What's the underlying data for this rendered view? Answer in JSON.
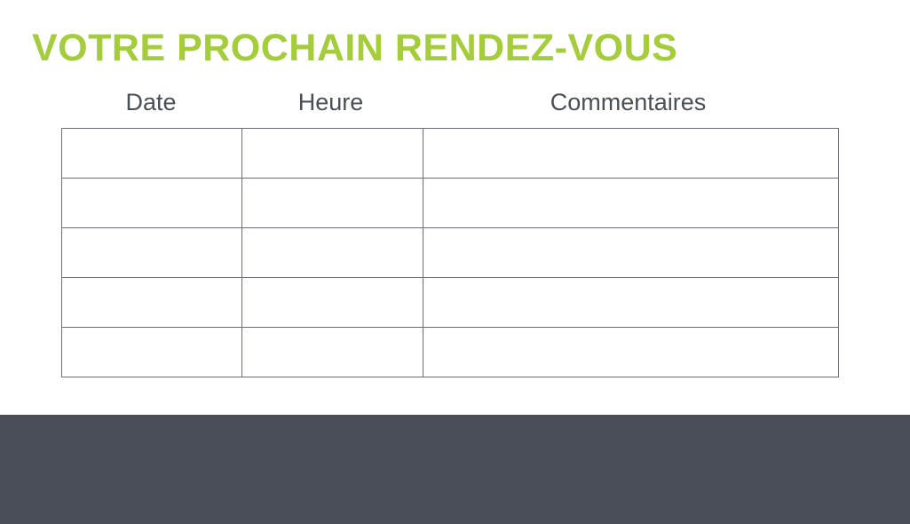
{
  "title": "VOTRE PROCHAIN RENDEZ-VOUS",
  "columns": [
    "Date",
    "Heure",
    "Commentaires"
  ],
  "row_count": 5,
  "colors": {
    "accent": "#a4cc3c",
    "text": "#4a4e57",
    "lines": "#6d6e75",
    "footer": "#4a4e57"
  }
}
